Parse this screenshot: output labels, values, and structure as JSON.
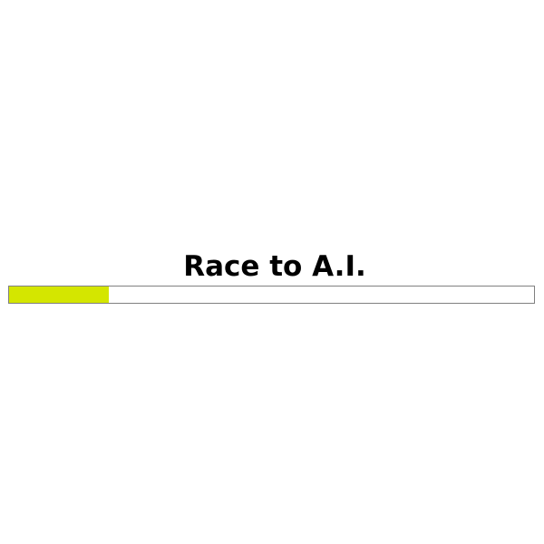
{
  "title": "Race to A.I.",
  "progress": {
    "percent": 19,
    "fill_color": "#d4e600",
    "track_color": "#ffffff",
    "border_color": "#808080"
  }
}
